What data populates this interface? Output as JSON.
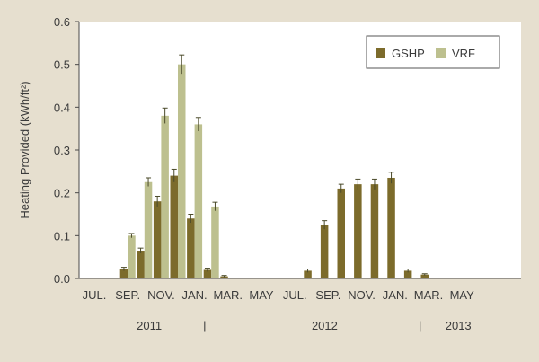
{
  "chart_data": {
    "type": "bar",
    "ylabel": "Heating Provided (kWh/ft²)",
    "ylim": [
      0,
      0.6
    ],
    "yticks": [
      "0.0",
      "0.1",
      "0.2",
      "0.3",
      "0.4",
      "0.5",
      "0.6"
    ],
    "x_tick_labels": [
      "JUL.",
      "SEP.",
      "NOV.",
      "JAN.",
      "MAR.",
      "MAY",
      "JUL.",
      "SEP.",
      "NOV.",
      "JAN.",
      "MAR.",
      "MAY"
    ],
    "year_labels": [
      "2011",
      "2012",
      "2013"
    ],
    "year_separators": [
      "|",
      "|"
    ],
    "legend_position": "top-right",
    "error_bars": true,
    "grid": false,
    "categories": [
      "Jul 2011",
      "Aug 2011",
      "Sep 2011",
      "Oct 2011",
      "Nov 2011",
      "Dec 2011",
      "Jan 2012",
      "Feb 2012",
      "Mar 2012",
      "Apr 2012",
      "May 2012",
      "Jun 2012",
      "Jul 2012",
      "Aug 2012",
      "Sep 2012",
      "Oct 2012",
      "Nov 2012",
      "Dec 2012",
      "Jan 2013",
      "Feb 2013",
      "Mar 2013",
      "Apr 2013",
      "May 2013"
    ],
    "series": [
      {
        "name": "GSHP",
        "color": "#7c6b2b",
        "values": [
          0.0,
          0.0,
          0.022,
          0.065,
          0.18,
          0.24,
          0.14,
          0.02,
          0.005,
          0.0,
          0.0,
          0.0,
          0.0,
          0.018,
          0.125,
          0.21,
          0.22,
          0.22,
          0.235,
          0.018,
          0.009,
          0.0,
          0.0
        ],
        "errors": [
          0.0,
          0.0,
          0.004,
          0.006,
          0.012,
          0.015,
          0.01,
          0.004,
          0.002,
          0.0,
          0.0,
          0.0,
          0.0,
          0.004,
          0.01,
          0.01,
          0.012,
          0.012,
          0.013,
          0.004,
          0.002,
          0.0,
          0.0
        ]
      },
      {
        "name": "VRF",
        "color": "#bdc08f",
        "values": [
          0.0,
          0.0,
          0.1,
          0.225,
          0.38,
          0.5,
          0.36,
          0.168,
          0.0,
          0.0,
          0.0,
          0.0,
          0.0,
          0.0,
          0.0,
          0.0,
          0.0,
          0.0,
          0.0,
          0.0,
          0.0,
          0.0,
          0.0
        ],
        "errors": [
          0.0,
          0.0,
          0.005,
          0.01,
          0.018,
          0.022,
          0.016,
          0.01,
          0.0,
          0.0,
          0.0,
          0.0,
          0.0,
          0.0,
          0.0,
          0.0,
          0.0,
          0.0,
          0.0,
          0.0,
          0.0,
          0.0,
          0.0
        ]
      }
    ]
  }
}
